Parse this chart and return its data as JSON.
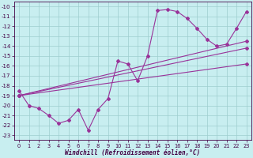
{
  "xlabel": "Windchill (Refroidissement éolien,°C)",
  "background_color": "#c8eef0",
  "grid_color": "#9ecece",
  "line_color": "#993399",
  "xlim": [
    -0.5,
    23.5
  ],
  "ylim": [
    -23.5,
    -9.5
  ],
  "yticks": [
    -23,
    -22,
    -21,
    -20,
    -19,
    -18,
    -17,
    -16,
    -15,
    -14,
    -13,
    -12,
    -11,
    -10
  ],
  "xticks": [
    0,
    1,
    2,
    3,
    4,
    5,
    6,
    7,
    8,
    9,
    10,
    11,
    12,
    13,
    14,
    15,
    16,
    17,
    18,
    19,
    20,
    21,
    22,
    23
  ],
  "main_series": {
    "x": [
      0,
      1,
      2,
      3,
      4,
      5,
      6,
      7,
      8,
      9,
      10,
      11,
      12,
      13,
      14,
      15,
      16,
      17,
      18,
      19,
      20,
      21,
      22,
      23
    ],
    "y": [
      -18.5,
      -20.0,
      -20.3,
      -21.0,
      -21.8,
      -21.5,
      -20.4,
      -22.5,
      -20.4,
      -19.3,
      -15.5,
      -15.8,
      -17.5,
      -15.0,
      -10.4,
      -10.3,
      -10.5,
      -11.2,
      -12.2,
      -13.3,
      -14.0,
      -13.8,
      -12.2,
      -10.5
    ]
  },
  "trend_lines": [
    {
      "x": [
        0,
        23
      ],
      "y": [
        -19.0,
        -13.5
      ]
    },
    {
      "x": [
        0,
        23
      ],
      "y": [
        -19.0,
        -14.2
      ]
    },
    {
      "x": [
        0,
        23
      ],
      "y": [
        -19.0,
        -15.8
      ]
    }
  ]
}
